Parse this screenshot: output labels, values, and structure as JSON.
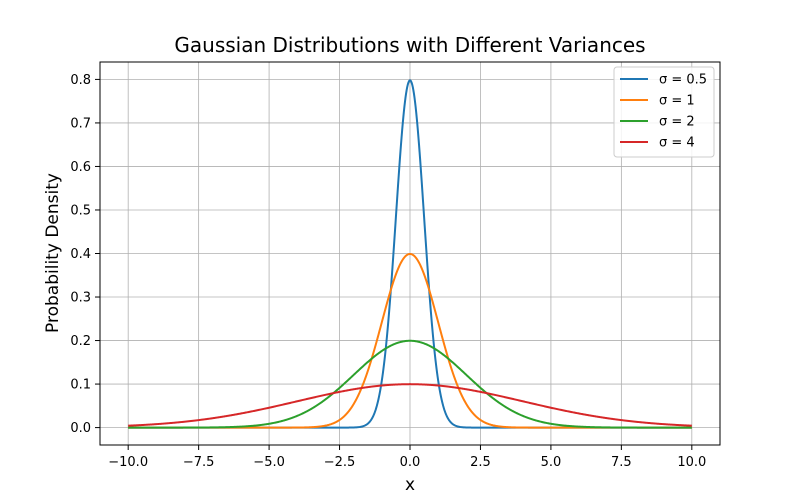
{
  "chart_data": {
    "type": "line",
    "title": "Gaussian Distributions with Different Variances",
    "xlabel": "x",
    "ylabel": "Probability Density",
    "xlim": [
      -11.0,
      11.0
    ],
    "ylim": [
      -0.04,
      0.84
    ],
    "xticks": [
      -10.0,
      -7.5,
      -5.0,
      -2.5,
      0.0,
      2.5,
      5.0,
      7.5,
      10.0
    ],
    "xtick_labels": [
      "−10.0",
      "−7.5",
      "−5.0",
      "−2.5",
      "0.0",
      "2.5",
      "5.0",
      "7.5",
      "10.0"
    ],
    "yticks": [
      0.0,
      0.1,
      0.2,
      0.3,
      0.4,
      0.5,
      0.6,
      0.7,
      0.8
    ],
    "ytick_labels": [
      "0.0",
      "0.1",
      "0.2",
      "0.3",
      "0.4",
      "0.5",
      "0.6",
      "0.7",
      "0.8"
    ],
    "grid": true,
    "legend_position": "top-right",
    "x_range": [
      -10.0,
      10.0
    ],
    "series": [
      {
        "name": "σ = 0.5",
        "mean": 0,
        "sigma": 0.5,
        "peak": 0.798,
        "color": "#1f77b4"
      },
      {
        "name": "σ = 1",
        "mean": 0,
        "sigma": 1,
        "peak": 0.399,
        "color": "#ff7f0e"
      },
      {
        "name": "σ = 2",
        "mean": 0,
        "sigma": 2,
        "peak": 0.199,
        "color": "#2ca02c"
      },
      {
        "name": "σ = 4",
        "mean": 0,
        "sigma": 4,
        "peak": 0.0997,
        "color": "#d62728"
      }
    ]
  }
}
